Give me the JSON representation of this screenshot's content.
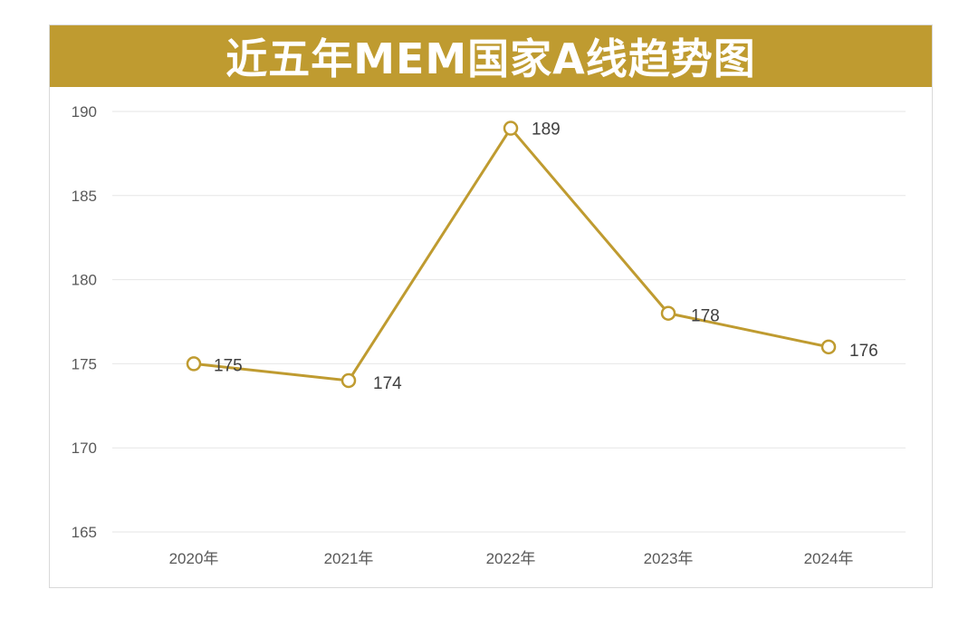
{
  "colors": {
    "accent": "#BF9B30",
    "title_text": "#FFFFFF",
    "gridline": "#E6E6E6",
    "tick_text": "#595959",
    "label_text": "#404040",
    "marker_fill": "#FFFFFF"
  },
  "chart_data": {
    "type": "line",
    "title": "近五年MEM国家A线趋势图",
    "xlabel": "",
    "ylabel": "",
    "categories": [
      "2020年",
      "2021年",
      "2022年",
      "2023年",
      "2024年"
    ],
    "series": [
      {
        "values": [
          175,
          174,
          189,
          178,
          176
        ]
      }
    ],
    "ylim": [
      165,
      190
    ],
    "yticks": [
      165,
      170,
      175,
      180,
      185,
      190
    ],
    "grid": true,
    "legend": "none",
    "data_labels": true,
    "marker": "hollow-circle"
  }
}
